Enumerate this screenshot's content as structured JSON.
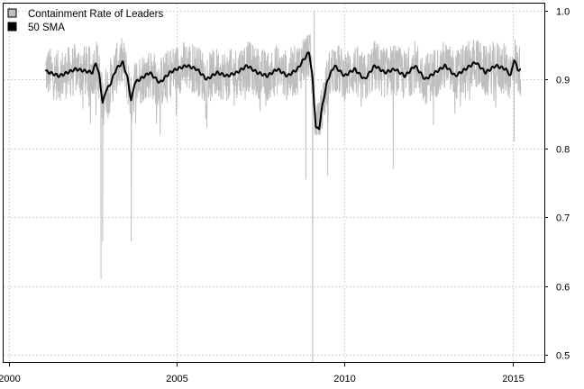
{
  "chart_data": {
    "type": "line",
    "title": "",
    "xlabel": "",
    "ylabel": "",
    "xlim": [
      1999.85,
      2015.95
    ],
    "ylim": [
      0.49,
      1.01
    ],
    "x_ticks": [
      2000,
      2005,
      2010,
      2015
    ],
    "x_tick_labels": [
      "2000",
      "2005",
      "2010",
      "2015"
    ],
    "y_ticks": [
      0.5,
      0.6,
      0.7,
      0.8,
      0.9,
      1.0
    ],
    "y_tick_labels": [
      "0.5",
      "0.6",
      "0.7",
      "0.8",
      "0.9",
      "1.0"
    ],
    "grid": true,
    "legend_position": "top-left",
    "series": [
      {
        "name": "Containment Rate of Leaders",
        "color": "#bebebe",
        "x_range": [
          2001.1,
          2015.25
        ],
        "typical_band": [
          0.86,
          0.96
        ],
        "notable_values": [
          {
            "x": 2002.75,
            "y": 0.61
          },
          {
            "x": 2002.8,
            "y": 0.665
          },
          {
            "x": 2003.65,
            "y": 0.665
          },
          {
            "x": 2008.85,
            "y": 0.755
          },
          {
            "x": 2009.05,
            "y": 0.49
          },
          {
            "x": 2009.1,
            "y": 1.0
          },
          {
            "x": 2009.5,
            "y": 0.76
          },
          {
            "x": 2011.45,
            "y": 0.77
          },
          {
            "x": 2015.05,
            "y": 0.81
          }
        ]
      },
      {
        "name": "50 SMA",
        "color": "#000000",
        "x": [
          2001.1,
          2001.5,
          2002.0,
          2002.5,
          2002.6,
          2002.7,
          2002.8,
          2002.9,
          2003.0,
          2003.2,
          2003.4,
          2003.55,
          2003.65,
          2003.75,
          2003.9,
          2004.2,
          2004.5,
          2004.8,
          2005.0,
          2005.3,
          2005.6,
          2005.9,
          2006.2,
          2006.5,
          2006.8,
          2007.1,
          2007.4,
          2007.7,
          2008.0,
          2008.3,
          2008.6,
          2008.8,
          2008.95,
          2009.05,
          2009.15,
          2009.25,
          2009.35,
          2009.5,
          2009.7,
          2010.0,
          2010.3,
          2010.6,
          2010.9,
          2011.2,
          2011.5,
          2011.8,
          2012.1,
          2012.4,
          2012.7,
          2013.0,
          2013.3,
          2013.6,
          2013.9,
          2014.2,
          2014.5,
          2014.8,
          2014.95,
          2015.05,
          2015.15,
          2015.25
        ],
        "values": [
          0.912,
          0.905,
          0.915,
          0.91,
          0.925,
          0.905,
          0.865,
          0.885,
          0.89,
          0.915,
          0.925,
          0.9,
          0.868,
          0.895,
          0.9,
          0.91,
          0.895,
          0.91,
          0.915,
          0.92,
          0.915,
          0.9,
          0.91,
          0.905,
          0.91,
          0.92,
          0.91,
          0.905,
          0.915,
          0.905,
          0.915,
          0.93,
          0.94,
          0.9,
          0.828,
          0.83,
          0.865,
          0.9,
          0.92,
          0.905,
          0.915,
          0.9,
          0.92,
          0.91,
          0.915,
          0.905,
          0.92,
          0.9,
          0.91,
          0.92,
          0.905,
          0.915,
          0.925,
          0.91,
          0.92,
          0.915,
          0.905,
          0.93,
          0.915,
          0.913
        ]
      }
    ]
  }
}
